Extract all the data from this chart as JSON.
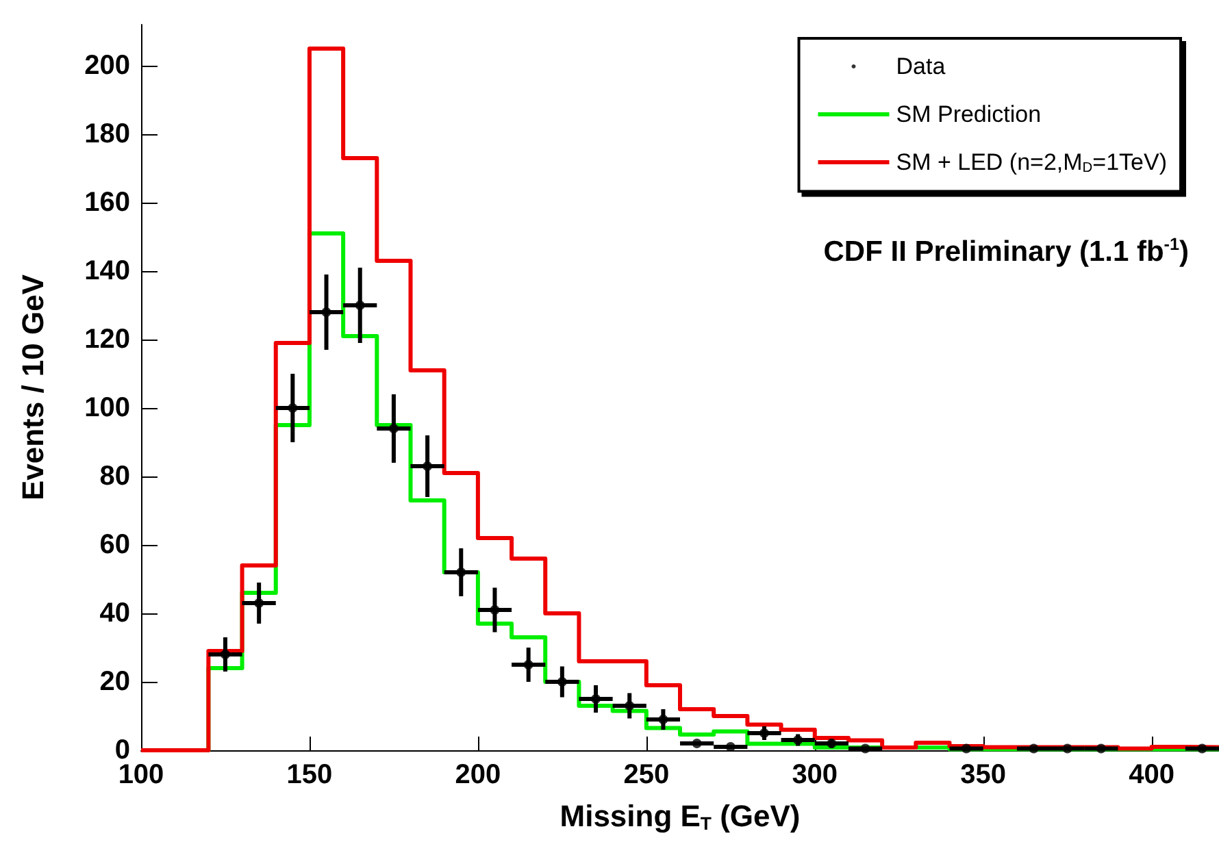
{
  "chart_data": {
    "type": "histogram",
    "xlabel": "Missing E$_{T}$ (GeV)",
    "ylabel": "Events / 10 GeV",
    "annotations": [
      "CDF II Preliminary (1.1 fb$^{-1}$)"
    ],
    "bins": [
      100,
      110,
      120,
      130,
      140,
      150,
      160,
      170,
      180,
      190,
      200,
      210,
      220,
      230,
      240,
      250,
      260,
      270,
      280,
      290,
      300,
      310,
      320,
      330,
      340,
      350,
      360,
      370,
      380,
      390,
      400,
      410,
      420
    ],
    "series": [
      {
        "name": "Data",
        "type": "scatter",
        "color": "#000000",
        "x": [
          125,
          135,
          145,
          155,
          165,
          175,
          185,
          195,
          205,
          215,
          225,
          235,
          245,
          255,
          265,
          275,
          285,
          295,
          305,
          315,
          345,
          365,
          375,
          385,
          415
        ],
        "values": [
          28,
          43,
          100,
          128,
          130,
          94,
          83,
          52,
          41,
          25,
          20,
          15,
          13,
          9,
          2,
          1,
          5,
          3,
          2,
          0.5,
          0.5,
          0.5,
          0.5,
          0.5,
          0.5
        ],
        "errors": [
          5,
          6,
          10,
          11,
          11,
          10,
          9,
          7,
          6.5,
          5,
          4.5,
          4,
          3.7,
          3,
          null,
          null,
          2,
          1.7,
          1.3,
          null,
          null,
          null,
          null,
          null,
          null
        ],
        "xerrors": [
          5,
          5,
          5,
          5,
          5,
          5,
          5,
          5,
          5,
          5,
          5,
          5,
          5,
          5,
          5,
          5,
          5,
          5,
          5,
          5,
          5,
          5,
          5,
          5,
          5
        ]
      },
      {
        "name": "SM Prediction",
        "color": "#00ee00",
        "values": [
          0,
          0,
          24,
          46,
          95,
          151,
          121,
          95,
          73,
          52,
          37,
          33,
          20,
          13,
          11.5,
          6.5,
          4.6,
          5.5,
          1.9,
          1.9,
          0.8,
          0.8,
          0.8,
          0.8,
          0.3,
          0.3,
          0.3,
          0.3,
          0.3,
          0.3,
          0.3,
          0.3
        ]
      },
      {
        "name": "SM + LED (n=2,M$_{D}$=1TeV)",
        "color": "#ee0000",
        "values": [
          0,
          0,
          29,
          54,
          119,
          205,
          173,
          143,
          111,
          81,
          62,
          56,
          40,
          26,
          26,
          19,
          12,
          10,
          7.5,
          6,
          3.6,
          2.9,
          0.8,
          2.2,
          1.2,
          0.9,
          0.9,
          0.9,
          0.9,
          0.5,
          1,
          0.9
        ]
      }
    ],
    "xlim": [
      100,
      420
    ],
    "ylim": [
      0,
      212
    ],
    "xticks": [
      100,
      150,
      200,
      250,
      300,
      350,
      400
    ],
    "yticks": [
      0,
      20,
      40,
      60,
      80,
      100,
      120,
      140,
      160,
      180,
      200
    ],
    "legend": "top right",
    "grid": false,
    "marker": "circle"
  }
}
